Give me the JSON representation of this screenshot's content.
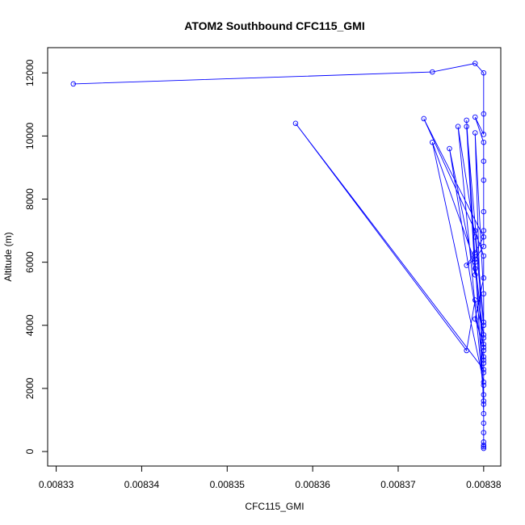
{
  "chart_data": {
    "type": "line",
    "title": "ATOM2 Southbound CFC115_GMI",
    "xlabel": "CFC115_GMI",
    "ylabel": "Altitude (m)",
    "xlim": [
      0.008329,
      0.008382
    ],
    "ylim": [
      -460,
      12800
    ],
    "x_ticks": [
      "0.00833",
      "0.00834",
      "0.00835",
      "0.00836",
      "0.00837",
      "0.00838"
    ],
    "x_tick_values": [
      0.00833,
      0.00834,
      0.00835,
      0.00836,
      0.00837,
      0.00838
    ],
    "y_ticks": [
      "0",
      "2000",
      "4000",
      "6000",
      "8000",
      "10000",
      "12000"
    ],
    "y_tick_values": [
      0,
      2000,
      4000,
      6000,
      8000,
      10000,
      12000
    ],
    "grid": false,
    "legend": "none",
    "series_color": "#0000ff",
    "marker": "open-circle",
    "series": [
      {
        "x": [
          0.008332,
          0.008374,
          0.008379,
          0.00838,
          0.00838,
          0.00838,
          0.008379,
          0.00838,
          0.00838,
          0.00838,
          0.00838,
          0.00838,
          0.00838,
          0.008379,
          0.008378,
          0.008379,
          0.00838,
          0.008373,
          0.008379,
          0.00838,
          0.00838,
          0.008379,
          0.00838,
          0.00838,
          0.008358,
          0.008378,
          0.008379,
          0.00838,
          0.00838,
          0.00838,
          0.008376,
          0.008379,
          0.008378,
          0.00838,
          0.00838,
          0.00838,
          0.008374,
          0.008379,
          0.00838,
          0.00838,
          0.00838,
          0.008377,
          0.008379,
          0.00838,
          0.00838,
          0.00838,
          0.008378,
          0.008379,
          0.00838,
          0.00838,
          0.00838,
          0.008379,
          0.00838,
          0.00838,
          0.00838,
          0.00838,
          0.00838,
          0.00838,
          0.00838,
          0.00838
        ],
        "y": [
          11650,
          12030,
          12300,
          12000,
          10700,
          10050,
          10600,
          9800,
          9200,
          8600,
          7600,
          7000,
          6500,
          6100,
          5900,
          6300,
          6800,
          10550,
          7000,
          6200,
          5500,
          4200,
          3400,
          2600,
          10400,
          3200,
          4800,
          3700,
          3300,
          2900,
          9600,
          5600,
          10300,
          4100,
          3000,
          2200,
          9800,
          6000,
          3600,
          2500,
          1800,
          10300,
          6800,
          4000,
          2800,
          1600,
          10500,
          5800,
          3200,
          2100,
          1200,
          10100,
          5000,
          1500,
          900,
          600,
          300,
          200,
          150,
          100
        ]
      }
    ]
  }
}
